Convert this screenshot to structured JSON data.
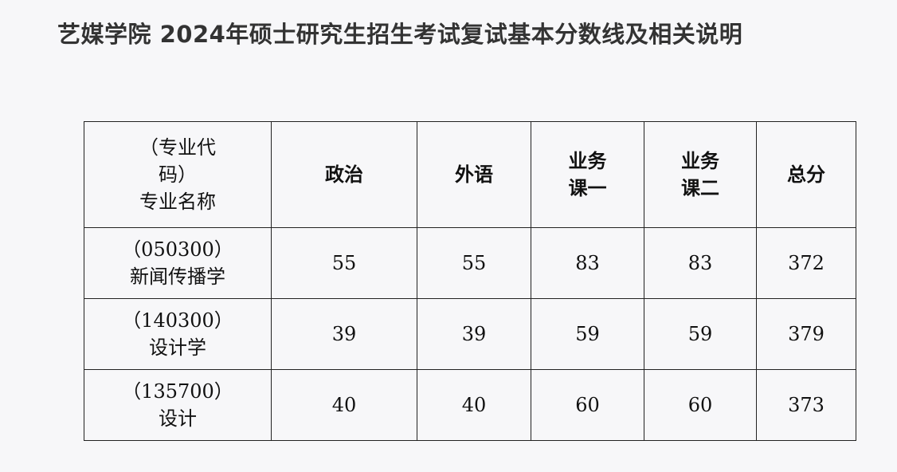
{
  "title": "艺媒学院 2024年硕士研究生招生考试复试基本分数线及相关说明",
  "table": {
    "header_first": [
      "（专业代",
      "码）",
      "专业名称"
    ],
    "headers": [
      [
        "政治"
      ],
      [
        "外语"
      ],
      [
        "业务",
        "课一"
      ],
      [
        "业务",
        "课二"
      ],
      [
        "总分"
      ]
    ],
    "rows": [
      {
        "code": "（050300）",
        "name": "新闻传播学",
        "values": [
          "55",
          "55",
          "83",
          "83",
          "372"
        ]
      },
      {
        "code": "（140300）",
        "name": "设计学",
        "values": [
          "39",
          "39",
          "59",
          "59",
          "379"
        ]
      },
      {
        "code": "（135700）",
        "name": "设计",
        "values": [
          "40",
          "40",
          "60",
          "60",
          "373"
        ]
      }
    ]
  }
}
